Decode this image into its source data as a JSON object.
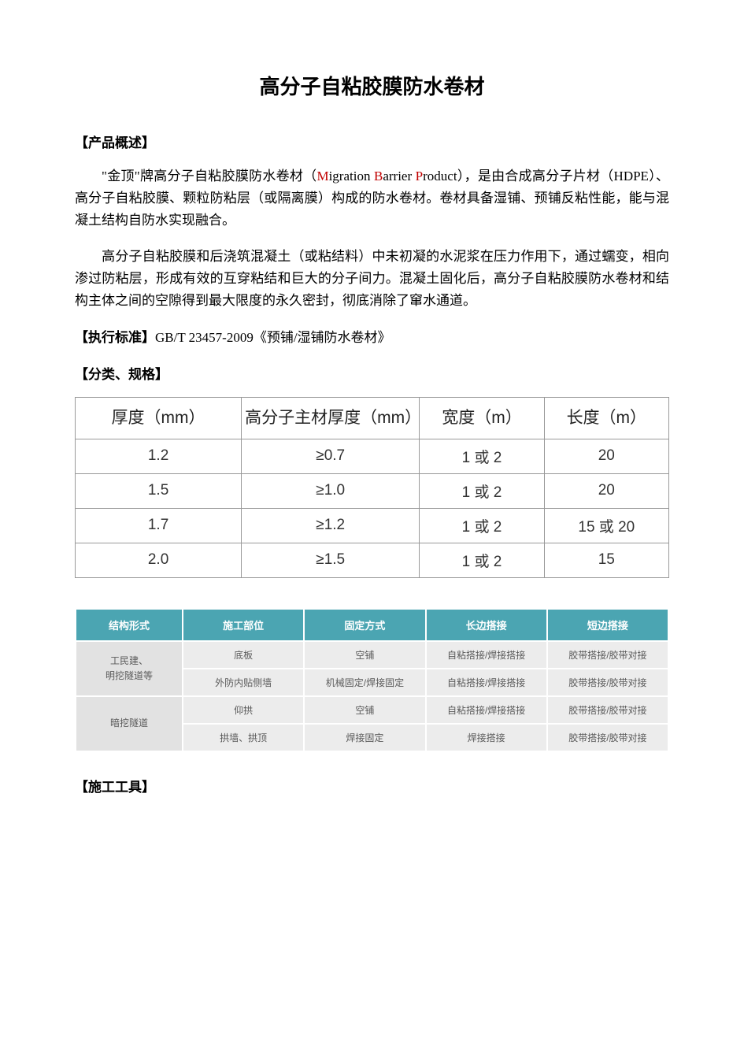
{
  "title": "高分子自粘胶膜防水卷材",
  "section_overview": "【产品概述】",
  "para1_parts": {
    "a": "\"金顶\"牌高分子自粘胶膜防水卷材（",
    "m": "M",
    "b": "igration ",
    "bb": "B",
    "c": "arrier ",
    "pp": "P",
    "d": "roduct），是由合成高分子片材（HDPE）、高分子自粘胶膜、颗粒防粘层（或隔离膜）构成的防水卷材。卷材具备湿铺、预铺反粘性能，能与混凝土结构自防水实现融合。"
  },
  "para2": "高分子自粘胶膜和后浇筑混凝土（或粘结料）中未初凝的水泥浆在压力作用下，通过蠕变，相向渗过防粘层，形成有效的互穿粘结和巨大的分子间力。混凝土固化后，高分子自粘胶膜防水卷材和结构主体之间的空隙得到最大限度的永久密封，彻底消除了窜水通道。",
  "standard_label": "【执行标准】",
  "standard_text": "GB/T 23457-2009《预铺/湿铺防水卷材》",
  "section_spec": "【分类、规格】",
  "spec_table": {
    "headers": [
      "厚度（mm）",
      "高分子主材厚度（mm）",
      "宽度（m）",
      "长度（m）"
    ],
    "rows": [
      [
        "1.2",
        "≥0.7",
        "1 或 2",
        "20"
      ],
      [
        "1.5",
        "≥1.0",
        "1 或 2",
        "20"
      ],
      [
        "1.7",
        "≥1.2",
        "1 或 2",
        "15 或 20"
      ],
      [
        "2.0",
        "≥1.5",
        "1 或 2",
        "15"
      ]
    ],
    "border_color": "#999999",
    "header_fontsize": 21,
    "cell_fontsize": 19
  },
  "construct_table": {
    "headers": [
      "结构形式",
      "施工部位",
      "固定方式",
      "长边搭接",
      "短边搭接"
    ],
    "groups": [
      {
        "head": "工民建、\n明挖隧道等",
        "rows": [
          [
            "底板",
            "空铺",
            "自粘搭接/焊接搭接",
            "胶带搭接/胶带对接"
          ],
          [
            "外防内贴侧墙",
            "机械固定/焊接固定",
            "自粘搭接/焊接搭接",
            "胶带搭接/胶带对接"
          ]
        ]
      },
      {
        "head": "暗挖隧道",
        "rows": [
          [
            "仰拱",
            "空铺",
            "自粘搭接/焊接搭接",
            "胶带搭接/胶带对接"
          ],
          [
            "拱墙、拱顶",
            "焊接固定",
            "焊接搭接",
            "胶带搭接/胶带对接"
          ]
        ]
      }
    ],
    "header_bg": "#4ba5b2",
    "header_color": "#ffffff",
    "cell_bg": "#ececec",
    "rowhead_bg": "#e2e2e2",
    "cell_color": "#5a5a5a"
  },
  "section_tools": "【施工工具】"
}
